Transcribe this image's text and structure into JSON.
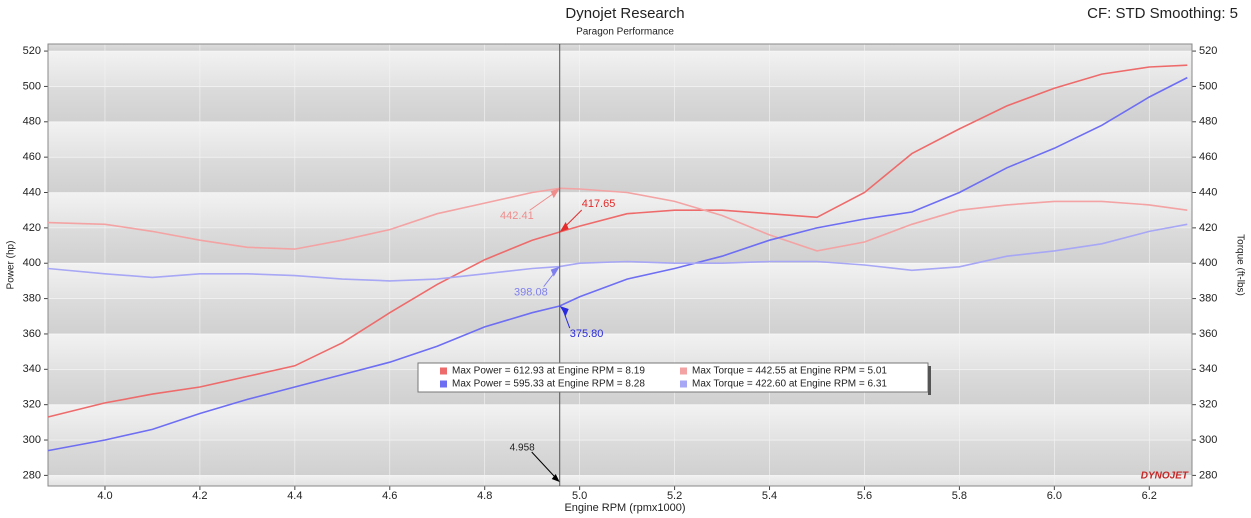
{
  "chart_data": {
    "type": "line",
    "title": "Dynojet Research",
    "subtitle": "Paragon Performance",
    "corner_note": "CF: STD Smoothing: 5",
    "x_label": "Engine RPM (rpmx1000)",
    "y_label": "Power (hp)",
    "y2_label": "Torque (ft-lbs)",
    "watermark": "DYNOJET",
    "x": [
      3.88,
      4.0,
      4.1,
      4.2,
      4.3,
      4.4,
      4.5,
      4.6,
      4.7,
      4.8,
      4.9,
      4.958,
      5.0,
      5.1,
      5.2,
      5.3,
      5.4,
      5.5,
      5.6,
      5.7,
      5.8,
      5.9,
      6.0,
      6.1,
      6.2,
      6.28
    ],
    "series": [
      {
        "name": "Max Power = 612.93 at Engine RPM = 8.19",
        "color": "#ee6b6b",
        "values": [
          313,
          321,
          326,
          330,
          336,
          342,
          355,
          372,
          388,
          402,
          413,
          417.65,
          421,
          428,
          430,
          430,
          428,
          426,
          440,
          462,
          476,
          489,
          499,
          507,
          511,
          512
        ],
        "value_labels": [
          null,
          null,
          null,
          null,
          null,
          null,
          null,
          null,
          null,
          null,
          null,
          "417.65",
          null,
          null,
          null,
          null,
          null,
          null,
          null,
          null,
          null,
          null,
          null,
          null,
          null,
          null
        ]
      },
      {
        "name": "Max Torque = 442.55 at Engine RPM = 5.01",
        "color": "#f3a3a3",
        "axis": "y2",
        "values": [
          423,
          422,
          418,
          413,
          409,
          408,
          413,
          419,
          428,
          434,
          440,
          442.41,
          442,
          440,
          435,
          427,
          416,
          407,
          412,
          422,
          430,
          433,
          435,
          435,
          433,
          430
        ],
        "value_labels": [
          null,
          null,
          null,
          null,
          null,
          null,
          null,
          null,
          null,
          null,
          null,
          "442.41",
          null,
          null,
          null,
          null,
          null,
          null,
          null,
          null,
          null,
          null,
          null,
          null,
          null,
          null
        ]
      },
      {
        "name": "Max Power = 595.33 at Engine RPM = 8.28",
        "color": "#6e6ef2",
        "values": [
          294,
          300,
          306,
          315,
          323,
          330,
          337,
          344,
          353,
          364,
          372,
          375.8,
          381,
          391,
          397,
          404,
          413,
          420,
          425,
          429,
          440,
          454,
          465,
          478,
          494,
          505
        ],
        "value_labels": [
          null,
          null,
          null,
          null,
          null,
          null,
          null,
          null,
          null,
          null,
          null,
          "375.80",
          null,
          null,
          null,
          null,
          null,
          null,
          null,
          null,
          null,
          null,
          null,
          null,
          null,
          null
        ]
      },
      {
        "name": "Max Torque = 422.60 at Engine RPM = 6.31",
        "color": "#a7a7f5",
        "axis": "y2",
        "values": [
          397,
          394,
          392,
          394,
          394,
          393,
          391,
          390,
          391,
          394,
          397,
          398.08,
          400,
          401,
          400,
          400,
          401,
          401,
          399,
          396,
          398,
          404,
          407,
          411,
          418,
          422
        ],
        "value_labels": [
          null,
          null,
          null,
          null,
          null,
          null,
          null,
          null,
          null,
          null,
          null,
          "398.08",
          null,
          null,
          null,
          null,
          null,
          null,
          null,
          null,
          null,
          null,
          null,
          null,
          null,
          null
        ]
      }
    ],
    "cursor_x": 4.958,
    "xlim": [
      3.88,
      6.29
    ],
    "xticks": [
      {
        "value": 4,
        "label": "4.0"
      },
      4.2,
      4.4,
      4.6,
      4.8,
      {
        "value": 5,
        "label": "5.0"
      },
      5.2,
      5.4,
      5.6,
      5.8,
      {
        "value": 6,
        "label": "6.0"
      },
      6.2
    ],
    "ylim": [
      274,
      524
    ],
    "yticks": [
      280,
      300,
      320,
      340,
      360,
      380,
      400,
      420,
      440,
      460,
      480,
      500,
      520
    ],
    "y2lim": [
      274,
      524
    ],
    "y2ticks": [
      280,
      300,
      320,
      340,
      360,
      380,
      400,
      420,
      440,
      460,
      480,
      500,
      520
    ],
    "grid": true
  }
}
